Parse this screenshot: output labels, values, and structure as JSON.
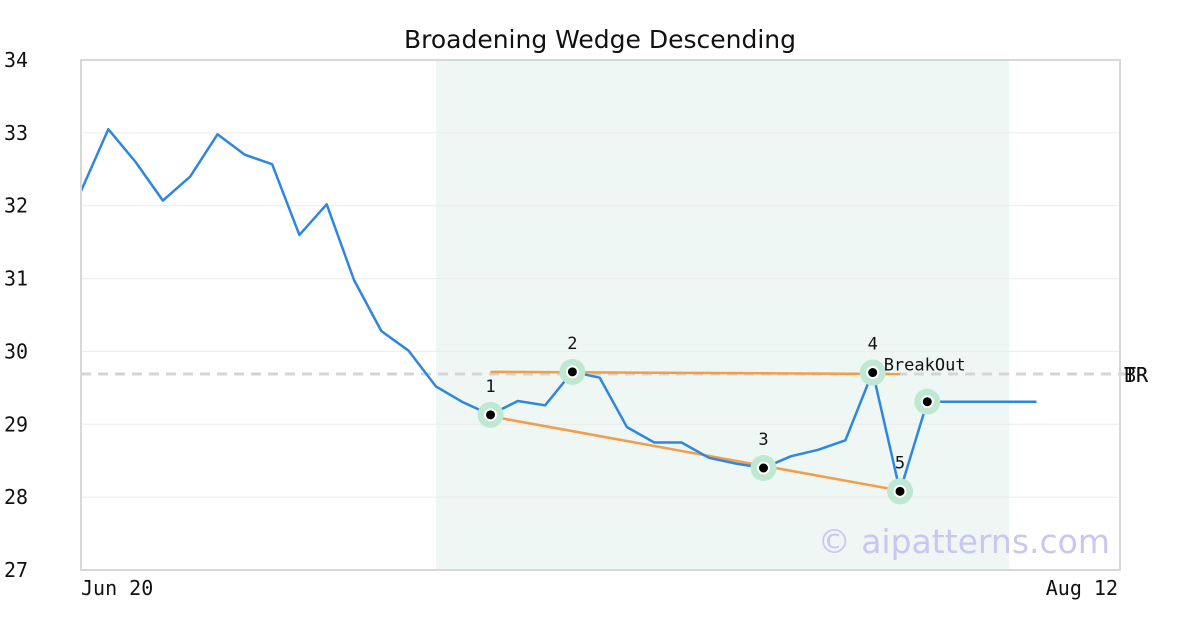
{
  "chart_data": {
    "type": "line",
    "title": "Broadening Wedge Descending",
    "xlabel": "",
    "ylabel": "",
    "ylim": [
      27,
      34
    ],
    "yticks": [
      27,
      28,
      29,
      30,
      31,
      32,
      33,
      34
    ],
    "xtick_labels": [
      "Jun 20",
      "Aug 12"
    ],
    "grid": true,
    "series": [
      {
        "color": "#2e86de",
        "x": [
          0,
          1,
          2,
          3,
          4,
          5,
          6,
          7,
          8,
          9,
          10,
          11,
          12,
          13,
          14,
          15,
          16,
          17,
          18,
          19,
          20,
          21,
          22,
          23,
          24,
          25,
          26,
          27,
          28,
          29,
          30,
          31,
          32,
          33,
          34,
          35
        ],
        "values": [
          32.2,
          33.05,
          32.6,
          32.07,
          32.4,
          32.98,
          32.7,
          32.57,
          31.6,
          32.02,
          30.98,
          30.28,
          30.01,
          29.52,
          29.3,
          29.13,
          29.32,
          29.26,
          29.72,
          29.64,
          28.96,
          28.75,
          28.75,
          28.54,
          28.46,
          28.4,
          28.56,
          28.65,
          28.78,
          29.72,
          28.08,
          29.31,
          29.31,
          29.31,
          29.31,
          29.31
        ]
      }
    ],
    "pattern_region": {
      "x_start": 13,
      "x_end": 34,
      "color": "#eef7f3"
    },
    "pattern_points": [
      {
        "label": "1",
        "x": 15,
        "y": 29.13
      },
      {
        "label": "2",
        "x": 18,
        "y": 29.72
      },
      {
        "label": "3",
        "x": 25,
        "y": 28.4
      },
      {
        "label": "4",
        "x": 29,
        "y": 29.71
      },
      {
        "label": "5",
        "x": 30,
        "y": 28.08
      }
    ],
    "breakout_point": {
      "x": 31,
      "y": 29.31
    },
    "trendlines": [
      {
        "color": "#f39c4a",
        "from": {
          "x": 15,
          "y": 29.72
        },
        "to": {
          "x": 30,
          "y": 29.69
        }
      },
      {
        "color": "#f39c4a",
        "from": {
          "x": 15,
          "y": 29.11
        },
        "to": {
          "x": 30,
          "y": 28.09
        }
      }
    ],
    "annotations": [
      {
        "text": "BreakOut",
        "x": 29,
        "y": 29.71
      }
    ],
    "reference_line": {
      "y": 29.69,
      "labels": [
        "TR",
        "BR"
      ],
      "color": "#d5d5d5"
    },
    "watermark": "© aipatterns.com"
  }
}
